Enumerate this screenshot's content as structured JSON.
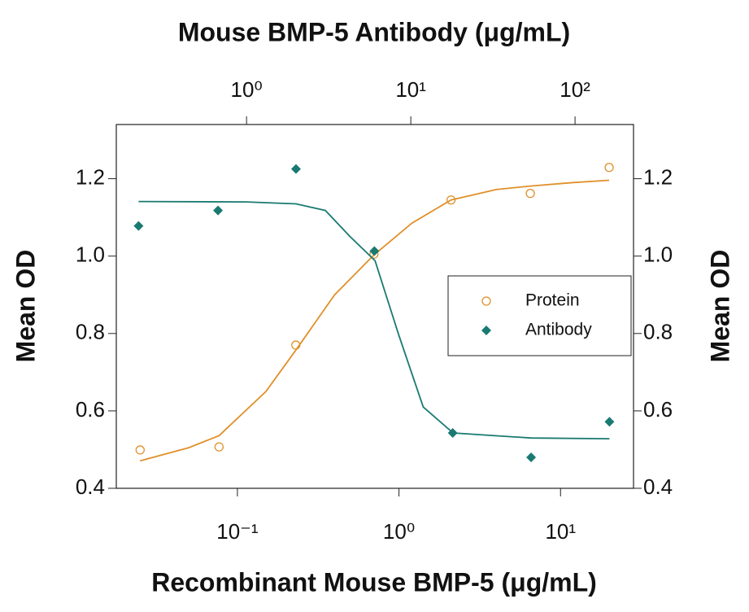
{
  "chart_data": {
    "type": "scatter",
    "x_label": "Recombinant Mouse BMP-5 (μg/mL)",
    "x2_label": "Mouse BMP-5 Antibody (μg/mL)",
    "y_label": "Mean OD",
    "y2_label": "Mean OD",
    "xlog": true,
    "xlim": [
      0.0178,
      28.3
    ],
    "xticks": [
      {
        "value": 0.1,
        "label": "10⁻¹"
      },
      {
        "value": 1,
        "label": "10⁰"
      },
      {
        "value": 10,
        "label": "10¹"
      }
    ],
    "x2lim": [
      0.161,
      227
    ],
    "x2ticks": [
      {
        "value": 1,
        "label": "10⁰"
      },
      {
        "value": 10,
        "label": "10¹"
      },
      {
        "value": 100,
        "label": "10²"
      }
    ],
    "ylim": [
      0.4,
      1.34
    ],
    "yticks": [
      0.4,
      0.6,
      0.8,
      {
        "value": 1,
        "label": "1.0"
      },
      1.2
    ],
    "y2lim": [
      0.4,
      1.34
    ],
    "y2ticks": [
      0.4,
      0.6,
      0.8,
      {
        "value": 1,
        "label": "1.0"
      },
      1.2
    ],
    "legend": "right",
    "series": [
      {
        "name": "Protein",
        "color": "#e0902a",
        "marker": "circle",
        "axis": "x",
        "x": [
          0.025,
          0.077,
          0.23,
          0.7,
          2.1,
          6.5,
          20
        ],
        "values": [
          0.499,
          0.507,
          0.77,
          1.005,
          1.145,
          1.162,
          1.229
        ],
        "fit_x": [
          0.025,
          0.05,
          0.077,
          0.15,
          0.23,
          0.4,
          0.7,
          1.2,
          2.1,
          4,
          6.5,
          12,
          20
        ],
        "fit_values": [
          0.471,
          0.505,
          0.536,
          0.65,
          0.757,
          0.9,
          1.003,
          1.085,
          1.145,
          1.172,
          1.181,
          1.19,
          1.196
        ]
      },
      {
        "name": "Antibody",
        "color": "#1a7a72",
        "marker": "diamond",
        "axis": "x2",
        "x": [
          0.22,
          0.67,
          2,
          6,
          18,
          54,
          162
        ],
        "values": [
          1.078,
          1.118,
          1.225,
          1.013,
          0.543,
          0.48,
          0.572
        ],
        "fit_x": [
          0.22,
          1,
          2,
          3.02,
          4.25,
          6.06,
          8.4,
          11.9,
          18.1,
          54,
          162
        ],
        "fit_values": [
          1.141,
          1.14,
          1.135,
          1.118,
          1.051,
          0.988,
          0.799,
          0.61,
          0.543,
          0.53,
          0.528
        ]
      }
    ]
  }
}
